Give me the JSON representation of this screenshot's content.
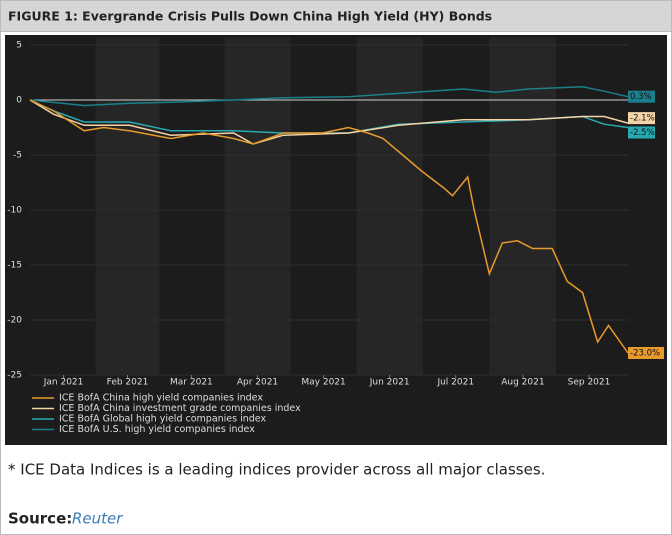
{
  "chart_data": {
    "type": "line",
    "title": "FIGURE 1: Evergrande Crisis Pulls Down China High Yield (HY) Bonds",
    "xlim": [
      0,
      276
    ],
    "ylim": [
      -25,
      5
    ],
    "xticks": [
      {
        "value": 15.5,
        "label": "Jan 2021"
      },
      {
        "value": 45,
        "label": "Feb 2021"
      },
      {
        "value": 74.5,
        "label": "Mar 2021"
      },
      {
        "value": 105,
        "label": "Apr 2021"
      },
      {
        "value": 135.5,
        "label": "May 2021"
      },
      {
        "value": 166,
        "label": "Jun 2021"
      },
      {
        "value": 196.5,
        "label": "Jul 2021"
      },
      {
        "value": 227.5,
        "label": "Aug 2021"
      },
      {
        "value": 258,
        "label": "Sep 2021"
      }
    ],
    "yticks": [
      5,
      0,
      -5,
      -10,
      -15,
      -20,
      -25
    ],
    "series": [
      {
        "name": "ICE BofA China high yield companies index",
        "color": "#e89a2c",
        "x": [
          0,
          11,
          25,
          34,
          46,
          65,
          80,
          94,
          103,
          117,
          135,
          147,
          156,
          163,
          172,
          181,
          191,
          195,
          202,
          205,
          212,
          218,
          225,
          232,
          241,
          248,
          255,
          262,
          267,
          276
        ],
        "values": [
          0,
          -1,
          -2.8,
          -2.5,
          -2.8,
          -3.5,
          -3,
          -3.5,
          -4,
          -3,
          -3,
          -2.5,
          -3,
          -3.5,
          -5,
          -6.5,
          -8,
          -8.7,
          -7,
          -10,
          -15.8,
          -13,
          -12.8,
          -13.5,
          -13.5,
          -16.5,
          -17.5,
          -22,
          -20.5,
          -23
        ],
        "last_label": "-23.0%"
      },
      {
        "name": "ICE BofA China investment grade companies index",
        "color": "#f4d3a6",
        "x": [
          0,
          11,
          25,
          46,
          65,
          94,
          103,
          117,
          147,
          170,
          200,
          230,
          255,
          265,
          276
        ],
        "values": [
          0,
          -1.3,
          -2.3,
          -2.3,
          -3.2,
          -3,
          -4,
          -3.2,
          -3,
          -2.3,
          -1.8,
          -1.8,
          -1.5,
          -1.5,
          -2.1
        ],
        "last_label": "-2.1%"
      },
      {
        "name": "ICE BofA Global high yield companies index",
        "color": "#27a9b3",
        "x": [
          0,
          11,
          25,
          46,
          65,
          94,
          117,
          147,
          170,
          200,
          230,
          255,
          265,
          276
        ],
        "values": [
          0,
          -1,
          -2,
          -2,
          -2.8,
          -2.8,
          -3,
          -3,
          -2.2,
          -2,
          -1.8,
          -1.5,
          -2.2,
          -2.5
        ],
        "last_label": "-2.5%"
      },
      {
        "name": "ICE BofA U.S. high yield companies index",
        "color": "#1b7f8c",
        "x": [
          0,
          25,
          46,
          65,
          94,
          117,
          147,
          170,
          200,
          215,
          230,
          255,
          265,
          276
        ],
        "values": [
          0,
          -0.5,
          -0.3,
          -0.2,
          0,
          0.2,
          0.3,
          0.6,
          1,
          0.7,
          1,
          1.2,
          0.8,
          0.3
        ],
        "last_label": "0.3%"
      }
    ]
  },
  "footnote": "* ICE Data Indices is a leading indices provider across all major classes.",
  "source_label": "Source:",
  "source": "Reuter"
}
